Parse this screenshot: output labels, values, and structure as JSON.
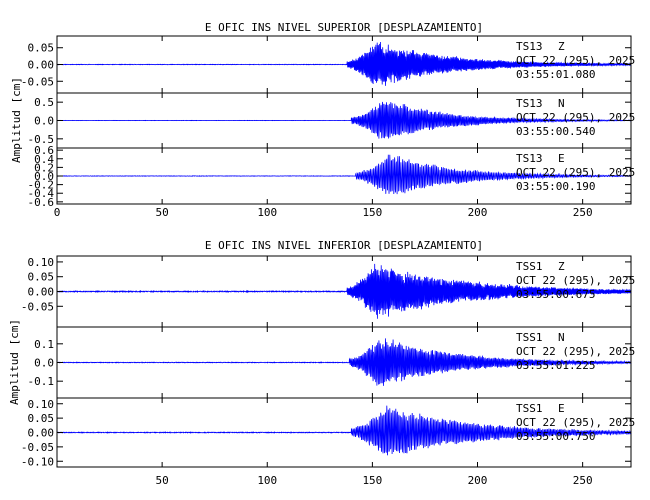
{
  "chart_data": [
    {
      "type": "line",
      "title": "E OFIC INS NIVEL SUPERIOR [DESPLAZAMIENTO]",
      "ylabel": "Amplitud [cm]",
      "xlim": [
        0,
        273
      ],
      "xticks": [
        "0",
        "50",
        "100",
        "150",
        "200",
        "250"
      ],
      "xtick_values": [
        0,
        50,
        100,
        150,
        200,
        250
      ],
      "panels": [
        {
          "station": "TS13",
          "component": "Z",
          "date": "OCT 22 (295), 2025",
          "time": "03:55:01.080",
          "ylim": [
            -0.085,
            0.085
          ],
          "yticks": [
            "0.05",
            "0.00",
            "-0.05"
          ],
          "ytick_values": [
            0.05,
            0.0,
            -0.05
          ],
          "onset": 138,
          "peak_time": 151,
          "peak_amp": 0.08,
          "noise_amp": 0.0006,
          "decay": 35,
          "freq": 1.9,
          "seed": 11,
          "line_color": "#0000ff"
        },
        {
          "station": "TS13",
          "component": "N",
          "date": "OCT 22 (295), 2025",
          "time": "03:55:00.540",
          "ylim": [
            -0.75,
            0.75
          ],
          "yticks": [
            "0.5",
            "0.0",
            "-0.5"
          ],
          "ytick_values": [
            0.5,
            0.0,
            -0.5
          ],
          "onset": 140,
          "peak_time": 155,
          "peak_amp": 0.7,
          "noise_amp": 0.004,
          "decay": 28,
          "freq": 1.5,
          "seed": 23,
          "line_color": "#0000ff"
        },
        {
          "station": "TS13",
          "component": "E",
          "date": "OCT 22 (295), 2025",
          "time": "03:55:00.190",
          "ylim": [
            -0.65,
            0.65
          ],
          "yticks": [
            "0.6",
            "0.4",
            "0.2",
            "0.0",
            "-0.2",
            "-0.4",
            "-0.6"
          ],
          "ytick_values": [
            0.6,
            0.4,
            0.2,
            0.0,
            -0.2,
            -0.4,
            -0.6
          ],
          "onset": 142,
          "peak_time": 158,
          "peak_amp": 0.6,
          "noise_amp": 0.004,
          "decay": 30,
          "freq": 1.3,
          "seed": 37,
          "line_color": "#0000ff"
        }
      ]
    },
    {
      "type": "line",
      "title": "E OFIC INS NIVEL INFERIOR [DESPLAZAMIENTO]",
      "ylabel": "Amplitud [cm]",
      "xlim": [
        0,
        273
      ],
      "xticks": [
        "50",
        "100",
        "150",
        "200",
        "250"
      ],
      "xtick_values": [
        50,
        100,
        150,
        200,
        250
      ],
      "panels": [
        {
          "station": "TSS1",
          "component": "Z",
          "date": "OCT 22 (295), 2025",
          "time": "03:55:00.675",
          "ylim": [
            -0.12,
            0.12
          ],
          "yticks": [
            "0.10",
            "0.05",
            "0.00",
            "-0.05"
          ],
          "ytick_values": [
            0.1,
            0.05,
            0.0,
            -0.05
          ],
          "onset": 138,
          "peak_time": 151,
          "peak_amp": 0.11,
          "noise_amp": 0.0015,
          "decay": 45,
          "freq": 1.9,
          "seed": 53,
          "line_color": "#0000ff"
        },
        {
          "station": "TSS1",
          "component": "N",
          "date": "OCT 22 (295), 2025",
          "time": "03:55:01.225",
          "ylim": [
            -0.19,
            0.19
          ],
          "yticks": [
            "0.1",
            "0.0",
            "-0.1"
          ],
          "ytick_values": [
            0.1,
            0.0,
            -0.1
          ],
          "onset": 139,
          "peak_time": 153,
          "peak_amp": 0.16,
          "noise_amp": 0.0015,
          "decay": 35,
          "freq": 1.6,
          "seed": 71,
          "line_color": "#0000ff"
        },
        {
          "station": "TSS1",
          "component": "E",
          "date": "OCT 22 (295), 2025",
          "time": "03:55:00.750",
          "ylim": [
            -0.12,
            0.12
          ],
          "yticks": [
            "0.10",
            "0.05",
            "0.00",
            "-0.05",
            "-0.10"
          ],
          "ytick_values": [
            0.1,
            0.05,
            0.0,
            -0.05,
            -0.1
          ],
          "onset": 140,
          "peak_time": 156,
          "peak_amp": 0.11,
          "noise_amp": 0.0012,
          "decay": 40,
          "freq": 1.4,
          "seed": 89,
          "line_color": "#0000ff"
        }
      ]
    }
  ]
}
